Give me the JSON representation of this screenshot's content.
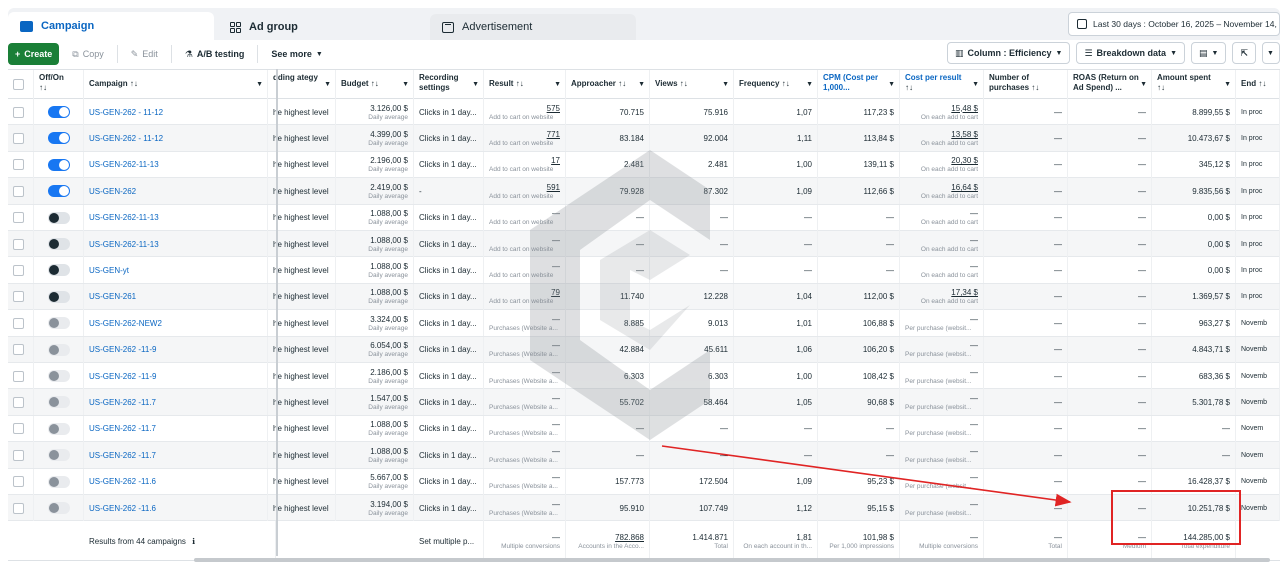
{
  "tabs": {
    "campaign": "Campaign",
    "ad_group": "Ad group",
    "advertisement": "Advertisement",
    "date_range": "Last 30 days : October 16, 2025 – November 14, 2"
  },
  "toolbar": {
    "create": "Create",
    "copy": "Copy",
    "edit": "Edit",
    "ab_testing": "A/B testing",
    "see_more": "See more",
    "columns": "Column : Efficiency",
    "breakdown": "Breakdown data"
  },
  "columns": {
    "off_on": "Off/On",
    "campaign": "Campaign",
    "bidding": "dding ategy",
    "budget": "Budget",
    "recording": "Recording settings",
    "result": "Result",
    "approacher": "Approacher",
    "views": "Views",
    "frequency": "Frequency",
    "cpm": "CPM (Cost per 1,000...",
    "cost_per_result": "Cost per result",
    "purchases": "Number of purchases",
    "roas": "ROAS (Return on Ad Spend) ...",
    "amount_spent": "Amount spent",
    "end": "End"
  },
  "rows": [
    {
      "toggle": "on",
      "name": "US-GEN-262 - 11-12",
      "bid": "he highest level",
      "budget": "3.126,00 $",
      "budget_sub": "Daily average",
      "rec": "Clicks in 1 day...",
      "result": "575",
      "result_sub": "Add to cart on website",
      "appr": "70.715",
      "views": "75.916",
      "freq": "1,07",
      "cpm": "117,23 $",
      "cpr": "15,48 $",
      "cpr_sub": "On each add to cart",
      "purch": "—",
      "roas": "—",
      "spent": "8.899,55 $",
      "end": "In proc"
    },
    {
      "toggle": "on",
      "name": "US-GEN-262 - 11-12",
      "bid": "he highest level",
      "budget": "4.399,00 $",
      "budget_sub": "Daily average",
      "rec": "Clicks in 1 day...",
      "result": "771",
      "result_sub": "Add to cart on website",
      "appr": "83.184",
      "views": "92.004",
      "freq": "1,11",
      "cpm": "113,84 $",
      "cpr": "13,58 $",
      "cpr_sub": "On each add to cart",
      "purch": "—",
      "roas": "—",
      "spent": "10.473,67 $",
      "end": "In proc"
    },
    {
      "toggle": "on",
      "name": "US-GEN-262-11-13",
      "bid": "he highest level",
      "budget": "2.196,00 $",
      "budget_sub": "Daily average",
      "rec": "Clicks in 1 day...",
      "result": "17",
      "result_sub": "Add to cart on website",
      "appr": "2.481",
      "views": "2.481",
      "freq": "1,00",
      "cpm": "139,11 $",
      "cpr": "20,30 $",
      "cpr_sub": "On each add to cart",
      "purch": "—",
      "roas": "—",
      "spent": "345,12 $",
      "end": "In proc"
    },
    {
      "toggle": "on",
      "name": "US-GEN-262",
      "bid": "he highest level",
      "budget": "2.419,00 $",
      "budget_sub": "Daily average",
      "rec": "-",
      "result": "591",
      "result_sub": "Add to cart on website",
      "appr": "79.928",
      "views": "87.302",
      "freq": "1,09",
      "cpm": "112,66 $",
      "cpr": "16,64 $",
      "cpr_sub": "On each add to cart",
      "purch": "—",
      "roas": "—",
      "spent": "9.835,56 $",
      "end": "In proc"
    },
    {
      "toggle": "off",
      "name": "US-GEN-262-11-13",
      "bid": "he highest level",
      "budget": "1.088,00 $",
      "budget_sub": "Daily average",
      "rec": "Clicks in 1 day...",
      "result": "—",
      "result_sub": "Add to cart on website",
      "appr": "—",
      "views": "—",
      "freq": "—",
      "cpm": "—",
      "cpr": "—",
      "cpr_sub": "On each add to cart",
      "purch": "—",
      "roas": "—",
      "spent": "0,00 $",
      "end": "In proc"
    },
    {
      "toggle": "off",
      "name": "US-GEN-262-11-13",
      "bid": "he highest level",
      "budget": "1.088,00 $",
      "budget_sub": "Daily average",
      "rec": "Clicks in 1 day...",
      "result": "—",
      "result_sub": "Add to cart on website",
      "appr": "—",
      "views": "—",
      "freq": "—",
      "cpm": "—",
      "cpr": "—",
      "cpr_sub": "On each add to cart",
      "purch": "—",
      "roas": "—",
      "spent": "0,00 $",
      "end": "In proc"
    },
    {
      "toggle": "off",
      "name": "US-GEN-yt",
      "bid": "he highest level",
      "budget": "1.088,00 $",
      "budget_sub": "Daily average",
      "rec": "Clicks in 1 day...",
      "result": "—",
      "result_sub": "Add to cart on website",
      "appr": "—",
      "views": "—",
      "freq": "—",
      "cpm": "—",
      "cpr": "—",
      "cpr_sub": "On each add to cart",
      "purch": "—",
      "roas": "—",
      "spent": "0,00 $",
      "end": "In proc"
    },
    {
      "toggle": "off",
      "name": "US-GEN-261",
      "bid": "he highest level",
      "budget": "1.088,00 $",
      "budget_sub": "Daily average",
      "rec": "Clicks in 1 day...",
      "result": "79",
      "result_sub": "Add to cart on website",
      "appr": "11.740",
      "views": "12.228",
      "freq": "1,04",
      "cpm": "112,00 $",
      "cpr": "17,34 $",
      "cpr_sub": "On each add to cart",
      "purch": "—",
      "roas": "—",
      "spent": "1.369,57 $",
      "end": "In proc"
    },
    {
      "toggle": "dis",
      "name": "US-GEN-262-NEW2",
      "bid": "he highest level",
      "budget": "3.324,00 $",
      "budget_sub": "Daily average",
      "rec": "Clicks in 1 day...",
      "result": "—",
      "result_sub": "Purchases (Website a...",
      "appr": "8.885",
      "views": "9.013",
      "freq": "1,01",
      "cpm": "106,88 $",
      "cpr": "—",
      "cpr_sub": "Per purchase (websit...",
      "purch": "—",
      "roas": "—",
      "spent": "963,27 $",
      "end": "Novemb"
    },
    {
      "toggle": "dis",
      "name": "US-GEN-262 -11-9",
      "bid": "he highest level",
      "budget": "6.054,00 $",
      "budget_sub": "Daily average",
      "rec": "Clicks in 1 day...",
      "result": "—",
      "result_sub": "Purchases (Website a...",
      "appr": "42.884",
      "views": "45.611",
      "freq": "1,06",
      "cpm": "106,20 $",
      "cpr": "—",
      "cpr_sub": "Per purchase (websit...",
      "purch": "—",
      "roas": "—",
      "spent": "4.843,71 $",
      "end": "Novemb"
    },
    {
      "toggle": "dis",
      "name": "US-GEN-262 -11-9",
      "bid": "he highest level",
      "budget": "2.186,00 $",
      "budget_sub": "Daily average",
      "rec": "Clicks in 1 day...",
      "result": "—",
      "result_sub": "Purchases (Website a...",
      "appr": "6.303",
      "views": "6.303",
      "freq": "1,00",
      "cpm": "108,42 $",
      "cpr": "—",
      "cpr_sub": "Per purchase (websit...",
      "purch": "—",
      "roas": "—",
      "spent": "683,36 $",
      "end": "Novemb"
    },
    {
      "toggle": "dis",
      "name": "US-GEN-262 -11.7",
      "bid": "he highest level",
      "budget": "1.547,00 $",
      "budget_sub": "Daily average",
      "rec": "Clicks in 1 day...",
      "result": "—",
      "result_sub": "Purchases (Website a...",
      "appr": "55.702",
      "views": "58.464",
      "freq": "1,05",
      "cpm": "90,68 $",
      "cpr": "—",
      "cpr_sub": "Per purchase (websit...",
      "purch": "—",
      "roas": "—",
      "spent": "5.301,78 $",
      "end": "Novemb"
    },
    {
      "toggle": "dis",
      "name": "US-GEN-262 -11.7",
      "bid": "he highest level",
      "budget": "1.088,00 $",
      "budget_sub": "Daily average",
      "rec": "Clicks in 1 day...",
      "result": "—",
      "result_sub": "Purchases (Website a...",
      "appr": "—",
      "views": "—",
      "freq": "—",
      "cpm": "—",
      "cpr": "—",
      "cpr_sub": "Per purchase (websit...",
      "purch": "—",
      "roas": "—",
      "spent": "—",
      "end": "Novem"
    },
    {
      "toggle": "dis",
      "name": "US-GEN-262 -11.7",
      "bid": "he highest level",
      "budget": "1.088,00 $",
      "budget_sub": "Daily average",
      "rec": "Clicks in 1 day...",
      "result": "—",
      "result_sub": "Purchases (Website a...",
      "appr": "—",
      "views": "—",
      "freq": "—",
      "cpm": "—",
      "cpr": "—",
      "cpr_sub": "Per purchase (websit...",
      "purch": "—",
      "roas": "—",
      "spent": "—",
      "end": "Novem"
    },
    {
      "toggle": "dis",
      "name": "US-GEN-262 -11.6",
      "bid": "he highest level",
      "budget": "5.667,00 $",
      "budget_sub": "Daily average",
      "rec": "Clicks in 1 day...",
      "result": "—",
      "result_sub": "Purchases (Website a...",
      "appr": "157.773",
      "views": "172.504",
      "freq": "1,09",
      "cpm": "95,23 $",
      "cpr": "—",
      "cpr_sub": "Per purchase (websit...",
      "purch": "—",
      "roas": "—",
      "spent": "16.428,37 $",
      "end": "Novemb"
    },
    {
      "toggle": "dis",
      "name": "US-GEN-262 -11.6",
      "bid": "he highest level",
      "budget": "3.194,00 $",
      "budget_sub": "Daily average",
      "rec": "Clicks in 1 day...",
      "result": "—",
      "result_sub": "Purchases (Website a...",
      "appr": "95.910",
      "views": "107.749",
      "freq": "1,12",
      "cpm": "95,15 $",
      "cpr": "—",
      "cpr_sub": "Per purchase (websit...",
      "purch": "—",
      "roas": "—",
      "spent": "10.251,78 $",
      "end": "Novemb"
    }
  ],
  "summary": {
    "label": "Results from 44 campaigns",
    "rec": "Set multiple p...",
    "result": "—",
    "result_sub": "Multiple conversions",
    "appr": "782.868",
    "appr_sub": "Accounts in the Acco...",
    "views": "1.414.871",
    "views_sub": "Total",
    "freq": "1,81",
    "freq_sub": "On each account in th...",
    "cpm": "101,98 $",
    "cpm_sub": "Per 1,000 impressions",
    "cpr": "—",
    "cpr_sub": "Multiple conversions",
    "purch": "—",
    "purch_sub": "Total",
    "roas": "—",
    "roas_sub": "Medium",
    "spent": "144.285,00 $",
    "spent_sub": "Total expenditure"
  },
  "colors": {
    "accent": "#0a66c2",
    "create": "#1a7f37",
    "annotation": "#e02424",
    "toggle_on": "#1877f2"
  }
}
